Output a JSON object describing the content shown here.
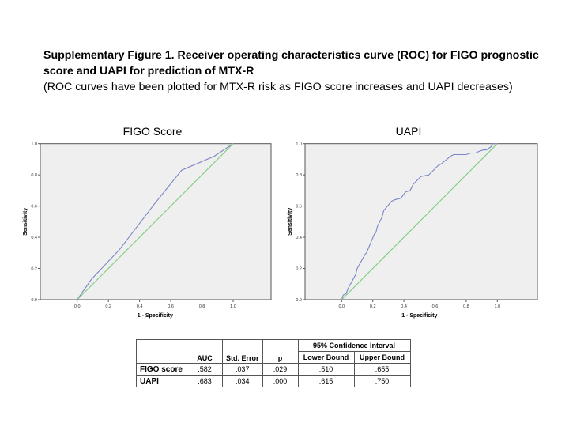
{
  "caption": {
    "title": "Supplementary Figure 1. Receiver operating characteristics curve (ROC) for FIGO prognostic score and UAPI for prediction of MTX-R",
    "subtitle": "(ROC curves have been plotted for MTX-R risk as FIGO score increases and UAPI decreases)"
  },
  "chart_data": [
    {
      "type": "line",
      "title": "FIGO Score",
      "xlabel": "1 - Specificity",
      "ylabel": "Sensitivity",
      "xlim": [
        0,
        1
      ],
      "ylim": [
        0,
        1
      ],
      "xticks": [
        "0.0",
        "0.2",
        "0.4",
        "0.6",
        "0.8",
        "1.0"
      ],
      "yticks": [
        "0.0",
        "0.2",
        "0.4",
        "0.6",
        "0.8",
        "1.0"
      ],
      "grid": false,
      "colors": {
        "curve": "#7b86c4",
        "reference": "#7fcf7f",
        "background": "#efefef"
      },
      "series": [
        {
          "x": [
            0,
            0.09,
            0.27,
            0.5,
            0.67,
            0.88,
            1
          ],
          "y": [
            0,
            0.13,
            0.32,
            0.62,
            0.83,
            0.92,
            1
          ]
        },
        {
          "x": [
            0,
            1
          ],
          "y": [
            0,
            1
          ]
        }
      ]
    },
    {
      "type": "line",
      "title": "UAPI",
      "xlabel": "1 - Specificity",
      "ylabel": "Sensitivity",
      "xlim": [
        0,
        1
      ],
      "ylim": [
        0,
        1
      ],
      "xticks": [
        "0.0",
        "0.2",
        "0.4",
        "0.6",
        "0.8",
        "1.0"
      ],
      "yticks": [
        "0.0",
        "0.2",
        "0.4",
        "0.6",
        "0.8",
        "1.0"
      ],
      "grid": false,
      "colors": {
        "curve": "#7b86c4",
        "reference": "#7fcf7f",
        "background": "#efefef"
      },
      "series": [
        {
          "x": [
            0,
            0.01,
            0.03,
            0.04,
            0.09,
            0.1,
            0.15,
            0.16,
            0.21,
            0.22,
            0.23,
            0.26,
            0.27,
            0.32,
            0.34,
            0.38,
            0.41,
            0.44,
            0.46,
            0.5,
            0.51,
            0.56,
            0.62,
            0.64,
            0.7,
            0.72,
            0.8,
            0.83,
            0.86,
            0.88,
            0.91,
            0.93,
            0.96,
            0.97,
            1
          ],
          "y": [
            0,
            0.03,
            0.04,
            0.07,
            0.16,
            0.2,
            0.29,
            0.3,
            0.42,
            0.43,
            0.47,
            0.53,
            0.57,
            0.63,
            0.64,
            0.65,
            0.69,
            0.7,
            0.74,
            0.78,
            0.79,
            0.8,
            0.86,
            0.87,
            0.92,
            0.93,
            0.93,
            0.94,
            0.94,
            0.95,
            0.96,
            0.96,
            0.98,
            1,
            1
          ]
        },
        {
          "x": [
            0,
            1
          ],
          "y": [
            0,
            1
          ]
        }
      ]
    }
  ],
  "table": {
    "ci_header": "95% Confidence Interval",
    "headers": [
      "AUC",
      "Std. Error",
      "p",
      "Lower Bound",
      "Upper Bound"
    ],
    "rows": [
      {
        "label": "FIGO score",
        "values": [
          ".582",
          ".037",
          ".029",
          ".510",
          ".655"
        ]
      },
      {
        "label": "UAPI",
        "values": [
          ".683",
          ".034",
          ".000",
          ".615",
          ".750"
        ]
      }
    ]
  }
}
